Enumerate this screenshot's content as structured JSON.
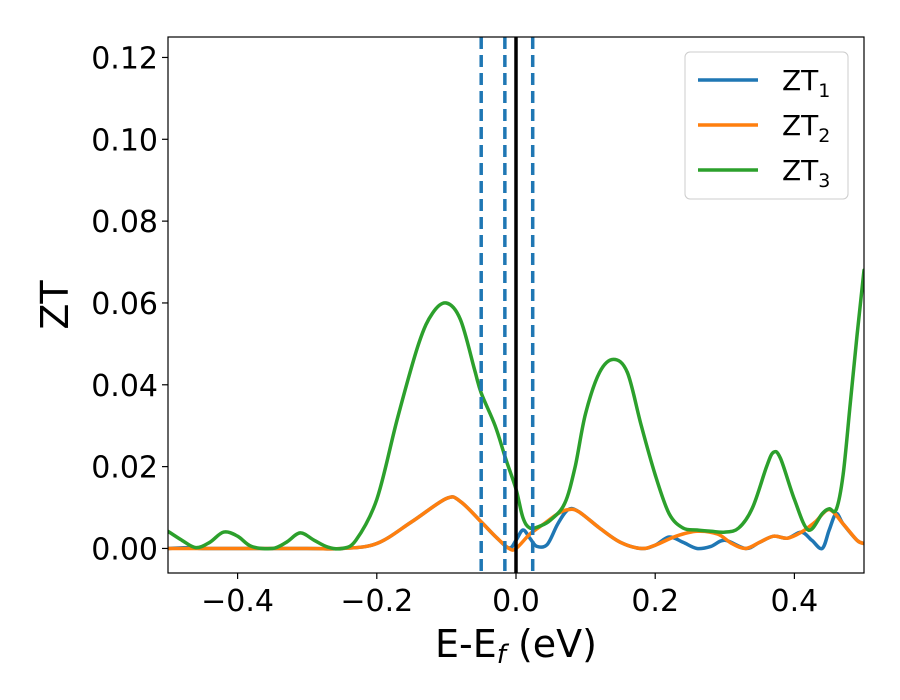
{
  "chart_data": {
    "type": "line",
    "title": "",
    "xlabel": {
      "main": "E-E",
      "sub": "f",
      "suffix": " (eV)"
    },
    "ylabel": "ZT",
    "xlim": [
      -0.5,
      0.5
    ],
    "ylim": [
      -0.006,
      0.125
    ],
    "xticks": [
      -0.4,
      -0.2,
      0.0,
      0.2,
      0.4
    ],
    "xtick_labels": [
      "−0.4",
      "−0.2",
      "0.0",
      "0.2",
      "0.4"
    ],
    "yticks": [
      0.0,
      0.02,
      0.04,
      0.06,
      0.08,
      0.1,
      0.12
    ],
    "ytick_labels": [
      "0.00",
      "0.02",
      "0.04",
      "0.06",
      "0.08",
      "0.10",
      "0.12"
    ],
    "grid": false,
    "legend_position": "top-right",
    "vertical_lines": [
      {
        "x": -0.05,
        "style": "dashed",
        "color": "#1f77b4"
      },
      {
        "x": -0.016,
        "style": "dashed",
        "color": "#1f77b4"
      },
      {
        "x": 0.024,
        "style": "dashed",
        "color": "#1f77b4"
      },
      {
        "x": 0.0,
        "style": "solid",
        "color": "#000000"
      }
    ],
    "series": [
      {
        "name": "ZT",
        "sub": "1",
        "color": "#1f77b4",
        "points": [
          [
            -0.5,
            0.0
          ],
          [
            -0.47,
            0.0002
          ],
          [
            -0.45,
            0.0
          ],
          [
            -0.4,
            0.0
          ],
          [
            -0.3,
            0.0
          ],
          [
            -0.25,
            0.0
          ],
          [
            -0.2,
            0.0012
          ],
          [
            -0.15,
            0.0065
          ],
          [
            -0.1,
            0.0122
          ],
          [
            -0.08,
            0.0115
          ],
          [
            -0.05,
            0.0065
          ],
          [
            -0.03,
            0.003
          ],
          [
            -0.01,
            0.0001
          ],
          [
            0.0,
            0.002
          ],
          [
            0.01,
            0.0045
          ],
          [
            0.02,
            0.0025
          ],
          [
            0.03,
            0.0005
          ],
          [
            0.045,
            0.001
          ],
          [
            0.06,
            0.006
          ],
          [
            0.075,
            0.0095
          ],
          [
            0.09,
            0.009
          ],
          [
            0.12,
            0.005
          ],
          [
            0.15,
            0.0015
          ],
          [
            0.18,
            0.0
          ],
          [
            0.2,
            0.0008
          ],
          [
            0.22,
            0.0028
          ],
          [
            0.24,
            0.0015
          ],
          [
            0.26,
            0.0
          ],
          [
            0.28,
            0.0005
          ],
          [
            0.3,
            0.002
          ],
          [
            0.33,
            0.0
          ],
          [
            0.35,
            0.0015
          ],
          [
            0.37,
            0.003
          ],
          [
            0.39,
            0.0025
          ],
          [
            0.41,
            0.004
          ],
          [
            0.425,
            0.002
          ],
          [
            0.44,
            0.0
          ],
          [
            0.45,
            0.0045
          ],
          [
            0.46,
            0.0085
          ],
          [
            0.47,
            0.006
          ],
          [
            0.49,
            0.002
          ],
          [
            0.5,
            0.0012
          ]
        ]
      },
      {
        "name": "ZT",
        "sub": "2",
        "color": "#ff7f0e",
        "points": [
          [
            -0.5,
            0.0
          ],
          [
            -0.4,
            0.0
          ],
          [
            -0.3,
            0.0
          ],
          [
            -0.25,
            0.0
          ],
          [
            -0.2,
            0.0012
          ],
          [
            -0.15,
            0.0065
          ],
          [
            -0.1,
            0.0122
          ],
          [
            -0.08,
            0.0115
          ],
          [
            -0.05,
            0.0065
          ],
          [
            -0.03,
            0.003
          ],
          [
            -0.01,
            0.0
          ],
          [
            0.0,
            0.0
          ],
          [
            0.02,
            0.0035
          ],
          [
            0.04,
            0.006
          ],
          [
            0.06,
            0.0085
          ],
          [
            0.075,
            0.0095
          ],
          [
            0.09,
            0.009
          ],
          [
            0.12,
            0.005
          ],
          [
            0.15,
            0.0015
          ],
          [
            0.18,
            0.0
          ],
          [
            0.2,
            0.0008
          ],
          [
            0.23,
            0.003
          ],
          [
            0.26,
            0.0042
          ],
          [
            0.29,
            0.0035
          ],
          [
            0.31,
            0.0012
          ],
          [
            0.33,
            0.0
          ],
          [
            0.35,
            0.0015
          ],
          [
            0.37,
            0.003
          ],
          [
            0.39,
            0.0025
          ],
          [
            0.41,
            0.004
          ],
          [
            0.43,
            0.0065
          ],
          [
            0.45,
            0.0095
          ],
          [
            0.47,
            0.006
          ],
          [
            0.49,
            0.002
          ],
          [
            0.5,
            0.0012
          ]
        ]
      },
      {
        "name": "ZT",
        "sub": "3",
        "color": "#2ca02c",
        "points": [
          [
            -0.5,
            0.0042
          ],
          [
            -0.48,
            0.002
          ],
          [
            -0.46,
            0.0002
          ],
          [
            -0.44,
            0.0015
          ],
          [
            -0.42,
            0.004
          ],
          [
            -0.4,
            0.003
          ],
          [
            -0.38,
            0.0005
          ],
          [
            -0.35,
            0.0
          ],
          [
            -0.33,
            0.0015
          ],
          [
            -0.31,
            0.0038
          ],
          [
            -0.29,
            0.002
          ],
          [
            -0.27,
            0.0003
          ],
          [
            -0.25,
            0.0
          ],
          [
            -0.23,
            0.002
          ],
          [
            -0.2,
            0.012
          ],
          [
            -0.17,
            0.032
          ],
          [
            -0.14,
            0.05
          ],
          [
            -0.12,
            0.0575
          ],
          [
            -0.1,
            0.06
          ],
          [
            -0.08,
            0.056
          ],
          [
            -0.06,
            0.044
          ],
          [
            -0.05,
            0.038
          ],
          [
            -0.03,
            0.03
          ],
          [
            -0.015,
            0.022
          ],
          [
            0.0,
            0.0145
          ],
          [
            0.01,
            0.0075
          ],
          [
            0.02,
            0.005
          ],
          [
            0.035,
            0.0055
          ],
          [
            0.05,
            0.007
          ],
          [
            0.07,
            0.011
          ],
          [
            0.085,
            0.02
          ],
          [
            0.1,
            0.033
          ],
          [
            0.12,
            0.043
          ],
          [
            0.14,
            0.0462
          ],
          [
            0.16,
            0.043
          ],
          [
            0.18,
            0.03
          ],
          [
            0.2,
            0.018
          ],
          [
            0.22,
            0.0085
          ],
          [
            0.24,
            0.005
          ],
          [
            0.26,
            0.0045
          ],
          [
            0.28,
            0.0042
          ],
          [
            0.3,
            0.004
          ],
          [
            0.32,
            0.005
          ],
          [
            0.34,
            0.01
          ],
          [
            0.36,
            0.02
          ],
          [
            0.37,
            0.0235
          ],
          [
            0.38,
            0.022
          ],
          [
            0.4,
            0.012
          ],
          [
            0.42,
            0.0045
          ],
          [
            0.44,
            0.0085
          ],
          [
            0.45,
            0.0097
          ],
          [
            0.46,
            0.0095
          ],
          [
            0.47,
            0.018
          ],
          [
            0.48,
            0.035
          ],
          [
            0.49,
            0.052
          ],
          [
            0.5,
            0.068
          ]
        ]
      }
    ]
  }
}
